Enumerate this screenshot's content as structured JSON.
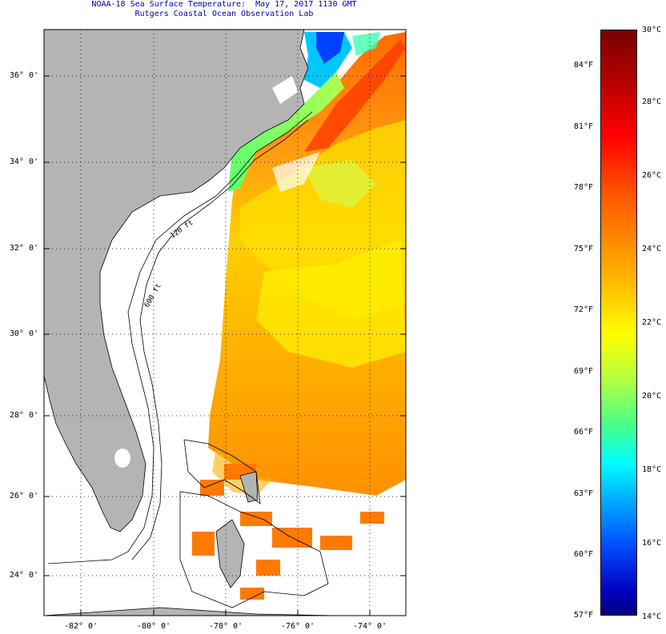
{
  "header": {
    "title": "NOAA-18 Sea Surface Temperature:  May 17, 2017 1130 GMT",
    "subtitle": "Rutgers Coastal Ocean Observation Lab"
  },
  "map": {
    "latitude_labels": [
      "36° 0'",
      "34° 0'",
      "32° 0'",
      "30° 0'",
      "28° 0'",
      "26° 0'",
      "24° 0'"
    ],
    "longitude_labels": [
      "-82° 0'",
      "-80° 0'",
      "-78° 0'",
      "-76° 0'",
      "-74° 0'"
    ],
    "contour_labels": [
      "120 ft",
      "600 ft"
    ],
    "colors": {
      "land": "#b4b4b4",
      "title": "#0000aa",
      "sst_warm": "#ff8a00",
      "sst_mid": "#ffff00",
      "sst_cool": "#00ffff",
      "sst_cold": "#0000c0"
    }
  },
  "colorbar": {
    "fahrenheit_labels": [
      "84°F",
      "81°F",
      "78°F",
      "75°F",
      "72°F",
      "69°F",
      "66°F",
      "63°F",
      "60°F",
      "57°F"
    ],
    "celsius_labels": [
      "30°C",
      "28°C",
      "26°C",
      "24°C",
      "22°C",
      "20°C",
      "18°C",
      "16°C",
      "14°C"
    ]
  }
}
